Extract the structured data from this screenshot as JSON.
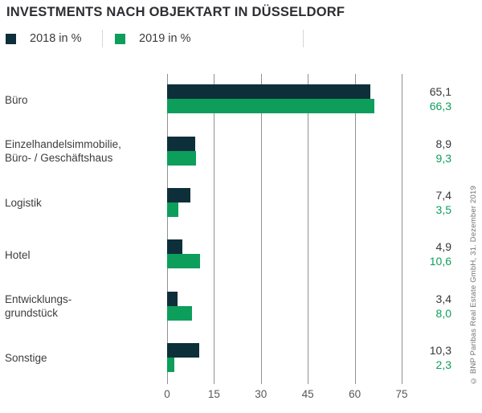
{
  "title": "INVESTMENTS NACH OBJEKTART IN DÜSSELDORF",
  "legend": {
    "items": [
      {
        "label": "2018 in %",
        "color": "#0d2f3a"
      },
      {
        "label": "2019 in %",
        "color": "#0d9e5c"
      }
    ]
  },
  "chart_data": {
    "type": "bar",
    "orientation": "horizontal",
    "title": "INVESTMENTS NACH OBJEKTART IN DÜSSELDORF",
    "categories": [
      "Büro",
      "Einzelhandelsimmobilie,\nBüro- / Geschäftshaus",
      "Logistik",
      "Hotel",
      "Entwicklungs-\ngrundstück",
      "Sonstige"
    ],
    "series": [
      {
        "name": "2018 in %",
        "color": "#0d2f3a",
        "values": [
          65.1,
          8.9,
          7.4,
          4.9,
          3.4,
          10.3
        ],
        "labels": [
          "65,1",
          "8,9",
          "7,4",
          "4,9",
          "3,4",
          "10,3"
        ],
        "label_color": "#35383a"
      },
      {
        "name": "2019 in %",
        "color": "#0d9e5c",
        "values": [
          66.3,
          9.3,
          3.5,
          10.6,
          8.0,
          2.3
        ],
        "labels": [
          "66,3",
          "9,3",
          "3,5",
          "10,6",
          "8,0",
          "2,3"
        ],
        "label_color": "#0d9e5c"
      }
    ],
    "x_ticks": [
      "0",
      "15",
      "30",
      "45",
      "60",
      "75"
    ],
    "xlim": [
      0,
      75
    ],
    "grid": "vertical",
    "gridline_color": "#909090",
    "legend_position": "top"
  },
  "footnote": "© BNP Paribas Real Estate GmbH, 31. Dezember 2019"
}
